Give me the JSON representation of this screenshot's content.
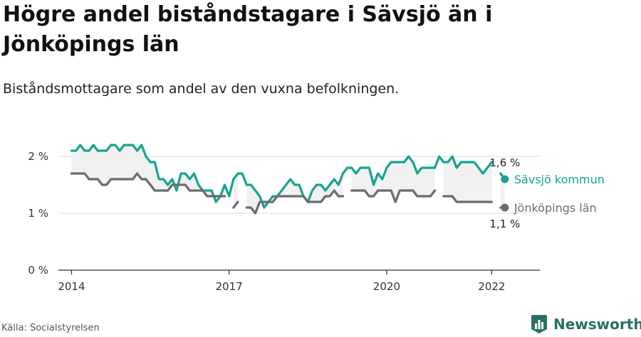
{
  "header": {
    "title": "Högre andel biståndstagare i Sävsjö än i Jönköpings län",
    "subtitle": "Biståndsmottagare som andel av den vuxna befolkningen."
  },
  "footer": {
    "source": "Källa: Socialstyrelsen",
    "brand": "Newsworthy",
    "brand_icon": "newsworthy-logo-icon"
  },
  "colors": {
    "savsjo": "#16a393",
    "lan": "#6b6b70",
    "band": "#f1f1f1",
    "grid": "#dddddd",
    "axis": "#333333",
    "brand": "#2b6f63"
  },
  "chart_data": {
    "type": "line",
    "title": "Högre andel biståndstagare i Sävsjö än i Jönköpings län",
    "subtitle": "Biståndsmottagare som andel av den vuxna befolkningen.",
    "xlabel": "",
    "ylabel": "",
    "x_unit": "month",
    "x_start": "2014-01",
    "xlim": [
      "2013-10",
      "2022-12"
    ],
    "ylim": [
      0,
      2.4
    ],
    "grid": true,
    "legend": "direct labels at line ends",
    "x_ticks": [
      {
        "date": "2014-01",
        "label": "2014"
      },
      {
        "date": "2017-01",
        "label": "2017"
      },
      {
        "date": "2020-01",
        "label": "2020"
      },
      {
        "date": "2022-01",
        "label": "2022"
      }
    ],
    "y_ticks": [
      {
        "value": 0,
        "label": "0 %"
      },
      {
        "value": 1,
        "label": "1 %"
      },
      {
        "value": 2,
        "label": "2 %"
      }
    ],
    "series": [
      {
        "name": "Sävsjö kommun",
        "color": "#16a393",
        "end_label": "1,6 %",
        "values": [
          2.1,
          2.1,
          2.2,
          2.1,
          2.1,
          2.2,
          2.1,
          2.1,
          2.1,
          2.2,
          2.2,
          2.1,
          2.2,
          2.2,
          2.2,
          2.1,
          2.2,
          2.0,
          1.9,
          1.9,
          1.6,
          1.6,
          1.5,
          1.6,
          1.4,
          1.7,
          1.7,
          1.6,
          1.7,
          1.5,
          1.4,
          1.4,
          1.4,
          1.2,
          1.3,
          1.5,
          1.3,
          1.6,
          1.7,
          1.7,
          1.5,
          1.5,
          1.4,
          1.3,
          1.1,
          1.2,
          1.3,
          1.3,
          1.4,
          1.5,
          1.6,
          1.5,
          1.5,
          1.3,
          1.2,
          1.4,
          1.5,
          1.5,
          1.4,
          1.5,
          1.6,
          1.5,
          1.7,
          1.8,
          1.8,
          1.7,
          1.8,
          1.8,
          1.8,
          1.5,
          1.7,
          1.6,
          1.8,
          1.9,
          1.9,
          1.9,
          1.9,
          2.0,
          1.9,
          1.7,
          1.8,
          1.8,
          1.8,
          1.8,
          2.0,
          1.9,
          1.9,
          2.0,
          1.8,
          1.9,
          1.9,
          1.9,
          1.9,
          1.8,
          1.7,
          1.8,
          1.9,
          null,
          1.7,
          1.6
        ]
      },
      {
        "name": "Jönköpings län",
        "color": "#6b6b70",
        "end_label": "1,1 %",
        "values": [
          1.7,
          1.7,
          1.7,
          1.7,
          1.6,
          1.6,
          1.6,
          1.5,
          1.5,
          1.6,
          1.6,
          1.6,
          1.6,
          1.6,
          1.6,
          1.7,
          1.6,
          1.6,
          1.5,
          1.4,
          1.4,
          1.4,
          1.4,
          1.5,
          1.5,
          1.5,
          1.5,
          1.4,
          1.4,
          1.4,
          1.4,
          1.3,
          1.3,
          1.3,
          1.3,
          1.3,
          null,
          1.1,
          1.2,
          null,
          1.1,
          1.1,
          1.0,
          1.2,
          1.2,
          1.2,
          1.2,
          1.3,
          1.3,
          1.3,
          1.3,
          1.3,
          1.3,
          1.3,
          1.2,
          1.2,
          1.2,
          1.2,
          1.3,
          1.3,
          1.4,
          1.3,
          1.3,
          null,
          1.4,
          1.4,
          1.4,
          1.4,
          1.3,
          1.3,
          1.4,
          1.4,
          1.4,
          1.4,
          1.2,
          1.4,
          1.4,
          1.4,
          1.4,
          1.3,
          1.3,
          1.3,
          1.3,
          1.4,
          null,
          1.3,
          1.3,
          1.3,
          1.2,
          1.2,
          1.2,
          1.2,
          1.2,
          1.2,
          1.2,
          1.2,
          1.2,
          null,
          1.1,
          1.1
        ]
      }
    ]
  }
}
